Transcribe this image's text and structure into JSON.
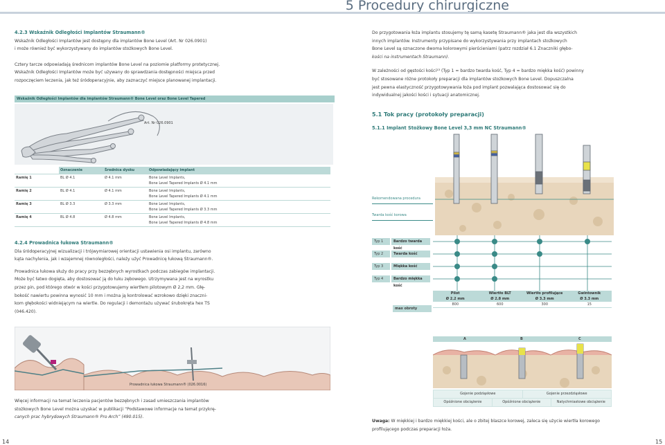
{
  "header": {
    "title": "5 Procedury chirurgiczne"
  },
  "left": {
    "sec": "4.2.3  Wskaźnik Odległości Implantów Straumann®",
    "p1a": "Wskaźnik Odległości Implantów jest dostępny dla implantów Bone Level (Art. Nr 026.0901)",
    "p1b": "i może również być wykorzystywany do implantów stożkowych Bone Level.",
    "p2a": "Cztery tarcze odpowiadają średnicom implantów Bone Level na poziomie platformy protetycznej.",
    "p2b": "Wskaźnik Odległości Implantów może być używany do sprawdzania dostępności miejsca przed",
    "p2c": "rozpoczęciem leczenia, jak też śródoperacyjnie, aby zaznaczyć miejsce planowanej implantacji.",
    "fig_title": "Wskaźnik Odległości Implantów dla implantów Straumann® Bone Level oraz Bone Level Tapered",
    "art": "Art. Nr 026.0901",
    "table": {
      "headers": [
        "Oznaczenie",
        "Średnica dysku",
        "Odpowiadający implant"
      ],
      "rows": [
        {
          "label": "Ramię 1",
          "mark": "BL Ø 4.1",
          "disk": "Ø 4.1 mm",
          "impl1": "Bone Level Implants,",
          "impl2": "Bone Level Tapered Implants Ø 4.1 mm"
        },
        {
          "label": "Ramię 2",
          "mark": "BL Ø 4.1",
          "disk": "Ø 4.1 mm",
          "impl1": "Bone Level Implants,",
          "impl2": "Bone Level Tapered Implants Ø 4.1 mm"
        },
        {
          "label": "Ramię 3",
          "mark": "BL Ø 3.3",
          "disk": "Ø 3.3 mm",
          "impl1": "Bone Level Implants,",
          "impl2": "Bone Level Tapered Implants Ø 3.3 mm"
        },
        {
          "label": "Ramię 4",
          "mark": "BL Ø 4.8",
          "disk": "Ø 4.8 mm",
          "impl1": "Bone Level Implants,",
          "impl2": "Bone Level Tapered Implants Ø 4.8 mm"
        }
      ]
    },
    "sec2": "4.2.4  Prowadnica łukowa Straumann®",
    "p3a": "Dla śródoperacyjnej wizualizacji i trójwymiarowej orientacji ustawienia osi implantu, zarówno",
    "p3b": "kąta nachylenia, jak i wzajemnej równoległości, należy użyć Prowadnicę łukową Straumann®.",
    "p4": [
      "Prowadnica łukowa służy do pracy przy bezzębnych wyrostkach podczas zabiegów implantacji.",
      "Może być łatwo dogięta, aby dostosować ją do łuku zębowego. Utrzymywana jest na wyrostku",
      "przez pin, pod którego otwór w kości przygotowujemy wiertłem pilotowym Ø 2,2 mm. Głę-",
      "bokość nawiertu powinna wynosić  10 mm i można ją kontrolować wzrokowo dzięki znaczni-",
      "kom głębokości widniejącym na wiertle. Do regulacji i demontażu używać śrubokręta hex TS",
      "(046.420)."
    ],
    "guide_cap": "Prowadnica łukowa Straumann® (026.0016)",
    "p5a": "Więcej informacji na temat leczenia pacjentów bezzębnych i zasad umieszczania implantów",
    "p5b": "stożkowych Bone Level można uzyskać w publikacji “Podstawowe informacje na temat przykrę-",
    "p5c": "canych prac hybrydowych  Straumann® Pro Arch” (490.015).",
    "page": "14"
  },
  "right": {
    "p1a": "Do przygotowania łoża implantu stosujemy tę samą kasetę Straumann® jaka jest dla wszystkich",
    "p1b": "innych implantów. Instrumenty przypisane do wykorzystywania przy implantach stożkowych",
    "p1c": "Bone Level są oznaczone dwoma kolorowymi pierścieniami (patrz rozdział 6.1 Znaczniki głębo-",
    "p1d": "kości na instrumentach Straumann).",
    "p2a": "W zależności od gęstości kości¹³ (Typ 1 = bardzo twarda kość, Typ 4 = bardzo miękka kość) powinny",
    "p2b": "być stosowane różne protokoły preparacji dla implantów stożkowych Bone Level. Dopuszczalna",
    "p2c": "jest pewna elastyczność przygotowywania łoża pod implant pozwalająca dostosować się do",
    "p2d": "indywidualnej jakości kości i sytuacji anatomicznej.",
    "sec51": "5.1  Tok pracy (protokoły preparacji)",
    "sec511": "5.1.1  Implant Stożkowy Bone Level 3,3 mm NC Straumann®",
    "leg1": "Rekomendowana procedura",
    "leg2": "Twarda kość korowa",
    "types": [
      {
        "a": "Typ 1",
        "b": "Bardzo twarda kość"
      },
      {
        "a": "Typ 2",
        "b": "Twarda kość"
      },
      {
        "a": "Typ 3",
        "b": "Miękka kość"
      },
      {
        "a": "Typ 4",
        "b": "Bardzo miękka kość"
      }
    ],
    "drills": [
      {
        "name": "Pilot",
        "dia": "Ø 2.2 mm",
        "rpm": "800"
      },
      {
        "name": "Wiertło BLT",
        "dia": "Ø 2.8 mm",
        "rpm": "600"
      },
      {
        "name": "Wiertło profilujące",
        "dia": "Ø 3.3 mm",
        "rpm": "300"
      },
      {
        "name": "Gwintownik",
        "dia": "Ø 3.3 mm",
        "rpm": "15"
      }
    ],
    "maxrpm": "max obroty",
    "letters": [
      "A",
      "B",
      "C"
    ],
    "ins": [
      "Gojenie podziąsłowe",
      "Gojenie przezdziąsłowe"
    ],
    "load": [
      "Opóźnione obciążenie",
      "Opóźnione obciążenie",
      "Natychmiastowe obciążenie"
    ],
    "note_b": "Uwaga:",
    "note_a": " W miękkiej i bardzo miękkiej kości, ale o zbitej blaszce korowej, zaleca się użycie wiertła korowego",
    "note_c": "profilującego podczas preparacji łoża.",
    "page": "15"
  }
}
